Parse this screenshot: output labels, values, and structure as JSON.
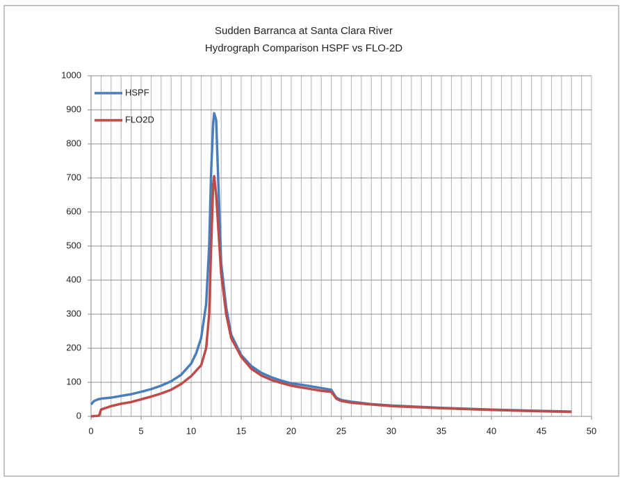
{
  "chart_data": {
    "type": "line",
    "title": "Sudden Barranca at Santa Clara River",
    "subtitle": "Hydrograph Comparison HSPF vs FLO-2D",
    "xlim": [
      0,
      50
    ],
    "xticks": [
      0,
      5,
      10,
      15,
      20,
      25,
      30,
      35,
      40,
      45,
      50
    ],
    "ylim": [
      0,
      1000
    ],
    "yticks": [
      0,
      100,
      200,
      300,
      400,
      500,
      600,
      700,
      800,
      900,
      1000
    ],
    "grid": true,
    "legend": "upper left",
    "series": [
      {
        "name": "HSPF",
        "color": "#4a7ebb",
        "x": [
          0,
          0.3,
          0.7,
          1,
          2,
          3,
          4,
          5,
          6,
          7,
          8,
          9,
          10,
          10.5,
          11,
          11.5,
          11.8,
          12,
          12.2,
          12.3,
          12.5,
          12.7,
          13,
          13.5,
          14,
          15,
          16,
          17,
          18,
          19,
          20,
          21,
          22,
          23,
          24,
          24.5,
          25,
          26,
          28,
          30,
          35,
          40,
          45,
          48
        ],
        "values": [
          35,
          45,
          50,
          52,
          55,
          60,
          65,
          72,
          80,
          90,
          103,
          122,
          155,
          185,
          230,
          330,
          500,
          720,
          860,
          890,
          870,
          700,
          450,
          320,
          240,
          180,
          148,
          128,
          115,
          105,
          97,
          93,
          88,
          83,
          78,
          55,
          48,
          43,
          36,
          32,
          25,
          20,
          16,
          14
        ]
      },
      {
        "name": "FLO2D",
        "color": "#be4b48",
        "x": [
          0,
          0.8,
          1,
          1.5,
          2,
          3,
          4,
          5,
          6,
          7,
          8,
          9,
          10,
          11,
          11.5,
          11.8,
          12,
          12.2,
          12.3,
          12.5,
          13,
          13.5,
          14,
          15,
          16,
          17,
          18,
          19,
          20,
          21,
          22,
          23,
          24,
          24.5,
          25,
          26,
          28,
          30,
          35,
          40,
          45,
          48
        ],
        "values": [
          0,
          2,
          20,
          25,
          30,
          37,
          42,
          50,
          58,
          67,
          78,
          95,
          118,
          150,
          200,
          300,
          500,
          680,
          705,
          650,
          420,
          300,
          230,
          175,
          140,
          120,
          107,
          98,
          90,
          85,
          80,
          75,
          72,
          52,
          45,
          40,
          35,
          30,
          24,
          19,
          15,
          13
        ]
      }
    ]
  }
}
